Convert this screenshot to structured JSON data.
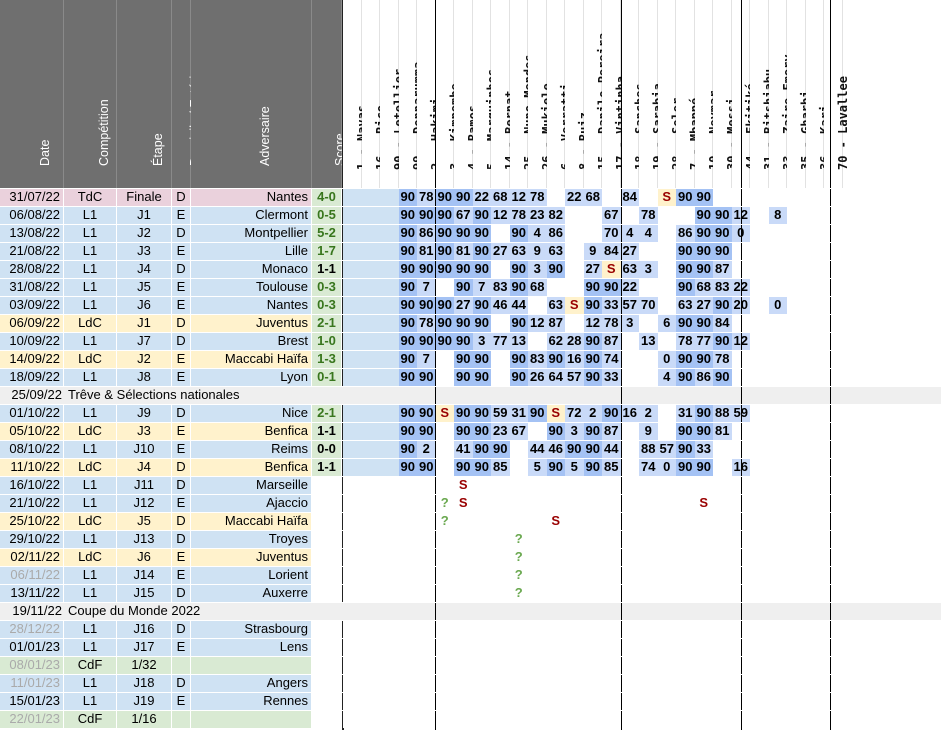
{
  "headers": {
    "left": [
      "Date",
      "Compétition",
      "Étape",
      "Domicile / Extérieur",
      "Adversaire",
      "Score"
    ],
    "players": [
      "1 - Navas",
      "16 - Rico",
      "90 - Letellier",
      "99 - Donnarumma",
      "2 - Hakimi",
      "3 - Kimpembe",
      "4 - Ramos",
      "5 - Marquinhos",
      "14 - Bernat",
      "25 - Nuno Mendes",
      "26 - Mukiele",
      "6 - Verratti",
      "8 - Ruiz",
      "15 - Danilo Pereira",
      "17 - Vintinha",
      "18 - Sanches",
      "19 - Sarabia",
      "28 - Soler",
      "7 - Mbappé",
      "10 - Neymar",
      "30 - Messi",
      "44 - Ekitiké",
      "31 - Bitshiabu",
      "33 - Zaire-Emery",
      "35 - Gharbi",
      "36 - Kari",
      "70 - Lavallee"
    ]
  },
  "rows": [
    {
      "type": "match",
      "date": "31/07/22",
      "comp": "TdC",
      "stage": "Finale",
      "venue": "D",
      "opponent": "Nantes",
      "score": "4-0",
      "result": "W",
      "bg": "#ead1dc",
      "stats": [
        "",
        "",
        "",
        "90",
        "78",
        "90",
        "90",
        "22",
        "68",
        "12",
        "78",
        "",
        "22",
        "68",
        "",
        "84",
        "",
        "S",
        "90",
        "90",
        "",
        "",
        "",
        "",
        "",
        "",
        ""
      ]
    },
    {
      "type": "match",
      "date": "06/08/22",
      "comp": "L1",
      "stage": "J1",
      "venue": "E",
      "opponent": "Clermont",
      "score": "0-5",
      "result": "W",
      "bg": "#cfe2f3",
      "stats": [
        "",
        "",
        "",
        "90",
        "90",
        "90",
        "67",
        "90",
        "12",
        "78",
        "23",
        "82",
        "",
        "",
        "67",
        "",
        "78",
        "",
        "",
        "90",
        "90",
        "12",
        "",
        "8",
        "",
        "",
        ""
      ]
    },
    {
      "type": "match",
      "date": "13/08/22",
      "comp": "L1",
      "stage": "J2",
      "venue": "D",
      "opponent": "Montpellier",
      "score": "5-2",
      "result": "W",
      "bg": "#cfe2f3",
      "stats": [
        "",
        "",
        "",
        "90",
        "86",
        "90",
        "90",
        "90",
        "",
        "90",
        "4",
        "86",
        "",
        "",
        "70",
        "4",
        "4",
        "",
        "86",
        "90",
        "90",
        "0",
        "",
        "",
        "",
        "",
        ""
      ]
    },
    {
      "type": "match",
      "date": "21/08/22",
      "comp": "L1",
      "stage": "J3",
      "venue": "E",
      "opponent": "Lille",
      "score": "1-7",
      "result": "W",
      "bg": "#cfe2f3",
      "stats": [
        "",
        "",
        "",
        "90",
        "81",
        "90",
        "81",
        "90",
        "27",
        "63",
        "9",
        "63",
        "",
        "9",
        "84",
        "27",
        "",
        "",
        "90",
        "90",
        "90",
        "",
        "",
        "",
        "",
        "",
        ""
      ]
    },
    {
      "type": "match",
      "date": "28/08/22",
      "comp": "L1",
      "stage": "J4",
      "venue": "D",
      "opponent": "Monaco",
      "score": "1-1",
      "result": "D",
      "bg": "#cfe2f3",
      "stats": [
        "",
        "",
        "",
        "90",
        "90",
        "90",
        "90",
        "90",
        "",
        "90",
        "3",
        "90",
        "",
        "27",
        "S",
        "63",
        "3",
        "",
        "90",
        "90",
        "87",
        "",
        "",
        "",
        "",
        "",
        ""
      ]
    },
    {
      "type": "match",
      "date": "31/08/22",
      "comp": "L1",
      "stage": "J5",
      "venue": "E",
      "opponent": "Toulouse",
      "score": "0-3",
      "result": "W",
      "bg": "#cfe2f3",
      "stats": [
        "",
        "",
        "",
        "90",
        "7",
        "",
        "90",
        "7",
        "83",
        "90",
        "68",
        "",
        "",
        "90",
        "90",
        "22",
        "",
        "",
        "90",
        "68",
        "83",
        "22",
        "",
        "",
        "",
        "",
        ""
      ]
    },
    {
      "type": "match",
      "date": "03/09/22",
      "comp": "L1",
      "stage": "J6",
      "venue": "E",
      "opponent": "Nantes",
      "score": "0-3",
      "result": "W",
      "bg": "#cfe2f3",
      "stats": [
        "",
        "",
        "",
        "90",
        "90",
        "90",
        "27",
        "90",
        "46",
        "44",
        "",
        "63",
        "S",
        "90",
        "33",
        "57",
        "70",
        "",
        "63",
        "27",
        "90",
        "20",
        "",
        "0",
        "",
        "",
        ""
      ]
    },
    {
      "type": "match",
      "date": "06/09/22",
      "comp": "LdC",
      "stage": "J1",
      "venue": "D",
      "opponent": "Juventus",
      "score": "2-1",
      "result": "W",
      "bg": "#fff2cc",
      "stats": [
        "",
        "",
        "",
        "90",
        "78",
        "90",
        "90",
        "90",
        "",
        "90",
        "12",
        "87",
        "",
        "12",
        "78",
        "3",
        "",
        "6",
        "90",
        "90",
        "84",
        "",
        "",
        "",
        "",
        "",
        ""
      ]
    },
    {
      "type": "match",
      "date": "10/09/22",
      "comp": "L1",
      "stage": "J7",
      "venue": "D",
      "opponent": "Brest",
      "score": "1-0",
      "result": "W",
      "bg": "#cfe2f3",
      "stats": [
        "",
        "",
        "",
        "90",
        "90",
        "90",
        "90",
        "3",
        "77",
        "13",
        "",
        "62",
        "28",
        "90",
        "87",
        "",
        "13",
        "",
        "78",
        "77",
        "90",
        "12",
        "",
        "",
        "",
        "",
        ""
      ]
    },
    {
      "type": "match",
      "date": "14/09/22",
      "comp": "LdC",
      "stage": "J2",
      "venue": "E",
      "opponent": "Maccabi Haïfa",
      "score": "1-3",
      "result": "W",
      "bg": "#fff2cc",
      "stats": [
        "",
        "",
        "",
        "90",
        "7",
        "",
        "90",
        "90",
        "",
        "90",
        "83",
        "90",
        "16",
        "90",
        "74",
        "",
        "",
        "0",
        "90",
        "90",
        "78",
        "",
        "",
        "",
        "",
        "",
        ""
      ]
    },
    {
      "type": "match",
      "date": "18/09/22",
      "comp": "L1",
      "stage": "J8",
      "venue": "E",
      "opponent": "Lyon",
      "score": "0-1",
      "result": "W",
      "bg": "#cfe2f3",
      "stats": [
        "",
        "",
        "",
        "90",
        "90",
        "",
        "90",
        "90",
        "",
        "90",
        "26",
        "64",
        "57",
        "90",
        "33",
        "",
        "",
        "4",
        "90",
        "86",
        "90",
        "",
        "",
        "",
        "",
        "",
        ""
      ]
    },
    {
      "type": "break",
      "date": "25/09/22",
      "label": "Trêve & Sélections nationales"
    },
    {
      "type": "match",
      "date": "01/10/22",
      "comp": "L1",
      "stage": "J9",
      "venue": "D",
      "opponent": "Nice",
      "score": "2-1",
      "result": "W",
      "bg": "#cfe2f3",
      "stats": [
        "",
        "",
        "",
        "90",
        "90",
        "S",
        "90",
        "90",
        "59",
        "31",
        "90",
        "S",
        "72",
        "2",
        "90",
        "16",
        "2",
        "",
        "31",
        "90",
        "88",
        "59",
        "",
        "",
        "",
        "",
        ""
      ]
    },
    {
      "type": "match",
      "date": "05/10/22",
      "comp": "LdC",
      "stage": "J3",
      "venue": "E",
      "opponent": "Benfica",
      "score": "1-1",
      "result": "D",
      "bg": "#fff2cc",
      "stats": [
        "",
        "",
        "",
        "90",
        "90",
        "",
        "90",
        "90",
        "23",
        "67",
        "",
        "90",
        "3",
        "90",
        "87",
        "",
        "9",
        "",
        "90",
        "90",
        "81",
        "",
        "",
        "",
        "",
        "",
        ""
      ]
    },
    {
      "type": "match",
      "date": "08/10/22",
      "comp": "L1",
      "stage": "J10",
      "venue": "E",
      "opponent": "Reims",
      "score": "0-0",
      "result": "D",
      "bg": "#cfe2f3",
      "stats": [
        "",
        "",
        "",
        "90",
        "2",
        "",
        "41",
        "90",
        "90",
        "",
        "44",
        "46",
        "90",
        "90",
        "44",
        "",
        "88",
        "57",
        "90",
        "33",
        "",
        "",
        "",
        "",
        "",
        "",
        ""
      ]
    },
    {
      "type": "match",
      "date": "11/10/22",
      "comp": "LdC",
      "stage": "J4",
      "venue": "D",
      "opponent": "Benfica",
      "score": "1-1",
      "result": "D",
      "bg": "#fff2cc",
      "stats": [
        "",
        "",
        "",
        "90",
        "90",
        "",
        "90",
        "90",
        "85",
        "",
        "5",
        "90",
        "5",
        "90",
        "85",
        "",
        "74",
        "0",
        "90",
        "90",
        "",
        "16",
        "",
        "",
        "",
        "",
        ""
      ]
    },
    {
      "type": "match",
      "date": "16/10/22",
      "comp": "L1",
      "stage": "J11",
      "venue": "D",
      "opponent": "Marseille",
      "score": "",
      "result": "",
      "bg": "#cfe2f3",
      "stats": [
        "",
        "",
        "",
        "",
        "",
        "",
        "S",
        "",
        "",
        "",
        "",
        "",
        "",
        "",
        "",
        "",
        "",
        "",
        "",
        "",
        "",
        "",
        "",
        "",
        "",
        "",
        ""
      ]
    },
    {
      "type": "match",
      "date": "21/10/22",
      "comp": "L1",
      "stage": "J12",
      "venue": "E",
      "opponent": "Ajaccio",
      "score": "",
      "result": "",
      "bg": "#cfe2f3",
      "stats": [
        "",
        "",
        "",
        "",
        "",
        "?",
        "S",
        "",
        "",
        "",
        "",
        "",
        "",
        "",
        "",
        "",
        "",
        "",
        "",
        "S",
        "",
        "",
        "",
        "",
        "",
        "",
        ""
      ]
    },
    {
      "type": "match",
      "date": "25/10/22",
      "comp": "LdC",
      "stage": "J5",
      "venue": "D",
      "opponent": "Maccabi Haïfa",
      "score": "",
      "result": "",
      "bg": "#fff2cc",
      "stats": [
        "",
        "",
        "",
        "",
        "",
        "?",
        "",
        "",
        "",
        "",
        "",
        "S",
        "",
        "",
        "",
        "",
        "",
        "",
        "",
        "",
        "",
        "",
        "",
        "",
        "",
        "",
        ""
      ]
    },
    {
      "type": "match",
      "date": "29/10/22",
      "comp": "L1",
      "stage": "J13",
      "venue": "D",
      "opponent": "Troyes",
      "score": "",
      "result": "",
      "bg": "#cfe2f3",
      "stats": [
        "",
        "",
        "",
        "",
        "",
        "",
        "",
        "",
        "",
        "?",
        "",
        "",
        "",
        "",
        "",
        "",
        "",
        "",
        "",
        "",
        "",
        "",
        "",
        "",
        "",
        "",
        ""
      ]
    },
    {
      "type": "match",
      "date": "02/11/22",
      "comp": "LdC",
      "stage": "J6",
      "venue": "E",
      "opponent": "Juventus",
      "score": "",
      "result": "",
      "bg": "#fff2cc",
      "stats": [
        "",
        "",
        "",
        "",
        "",
        "",
        "",
        "",
        "",
        "?",
        "",
        "",
        "",
        "",
        "",
        "",
        "",
        "",
        "",
        "",
        "",
        "",
        "",
        "",
        "",
        "",
        ""
      ]
    },
    {
      "type": "match",
      "date": "06/11/22",
      "comp": "L1",
      "stage": "J14",
      "venue": "E",
      "opponent": "Lorient",
      "score": "",
      "result": "",
      "bg": "#cfe2f3",
      "grey": true,
      "stats": [
        "",
        "",
        "",
        "",
        "",
        "",
        "",
        "",
        "",
        "?",
        "",
        "",
        "",
        "",
        "",
        "",
        "",
        "",
        "",
        "",
        "",
        "",
        "",
        "",
        "",
        "",
        ""
      ]
    },
    {
      "type": "match",
      "date": "13/11/22",
      "comp": "L1",
      "stage": "J15",
      "venue": "D",
      "opponent": "Auxerre",
      "score": "",
      "result": "",
      "bg": "#cfe2f3",
      "stats": [
        "",
        "",
        "",
        "",
        "",
        "",
        "",
        "",
        "",
        "?",
        "",
        "",
        "",
        "",
        "",
        "",
        "",
        "",
        "",
        "",
        "",
        "",
        "",
        "",
        "",
        "",
        ""
      ]
    },
    {
      "type": "break",
      "date": "19/11/22",
      "label": "Coupe du Monde 2022"
    },
    {
      "type": "match",
      "date": "28/12/22",
      "comp": "L1",
      "stage": "J16",
      "venue": "D",
      "opponent": "Strasbourg",
      "score": "",
      "result": "",
      "bg": "#cfe2f3",
      "grey": true,
      "stats": [
        "",
        "",
        "",
        "",
        "",
        "",
        "",
        "",
        "",
        "",
        "",
        "",
        "",
        "",
        "",
        "",
        "",
        "",
        "",
        "",
        "",
        "",
        "",
        "",
        "",
        "",
        ""
      ]
    },
    {
      "type": "match",
      "date": "01/01/23",
      "comp": "L1",
      "stage": "J17",
      "venue": "E",
      "opponent": "Lens",
      "score": "",
      "result": "",
      "bg": "#cfe2f3",
      "stats": [
        "",
        "",
        "",
        "",
        "",
        "",
        "",
        "",
        "",
        "",
        "",
        "",
        "",
        "",
        "",
        "",
        "",
        "",
        "",
        "",
        "",
        "",
        "",
        "",
        "",
        "",
        ""
      ]
    },
    {
      "type": "match",
      "date": "08/01/23",
      "comp": "CdF",
      "stage": "1/32",
      "venue": "",
      "opponent": "",
      "score": "",
      "result": "",
      "bg": "#d9ead3",
      "grey": true,
      "stats": [
        "",
        "",
        "",
        "",
        "",
        "",
        "",
        "",
        "",
        "",
        "",
        "",
        "",
        "",
        "",
        "",
        "",
        "",
        "",
        "",
        "",
        "",
        "",
        "",
        "",
        "",
        ""
      ]
    },
    {
      "type": "match",
      "date": "11/01/23",
      "comp": "L1",
      "stage": "J18",
      "venue": "D",
      "opponent": "Angers",
      "score": "",
      "result": "",
      "bg": "#cfe2f3",
      "grey": true,
      "stats": [
        "",
        "",
        "",
        "",
        "",
        "",
        "",
        "",
        "",
        "",
        "",
        "",
        "",
        "",
        "",
        "",
        "",
        "",
        "",
        "",
        "",
        "",
        "",
        "",
        "",
        "",
        ""
      ]
    },
    {
      "type": "match",
      "date": "15/01/23",
      "comp": "L1",
      "stage": "J19",
      "venue": "E",
      "opponent": "Rennes",
      "score": "",
      "result": "",
      "bg": "#cfe2f3",
      "stats": [
        "",
        "",
        "",
        "",
        "",
        "",
        "",
        "",
        "",
        "",
        "",
        "",
        "",
        "",
        "",
        "",
        "",
        "",
        "",
        "",
        "",
        "",
        "",
        "",
        "",
        "",
        ""
      ]
    },
    {
      "type": "match",
      "date": "22/01/23",
      "comp": "CdF",
      "stage": "1/16",
      "venue": "",
      "opponent": "",
      "score": "",
      "result": "",
      "bg": "#d9ead3",
      "grey": true,
      "stats": [
        "",
        "",
        "",
        "",
        "",
        "",
        "",
        "",
        "",
        "",
        "",
        "",
        "",
        "",
        "",
        "",
        "",
        "",
        "",
        "",
        "",
        "",
        "",
        "",
        "",
        "",
        ""
      ]
    }
  ],
  "colors": {
    "header_bg": "#6f6f6f",
    "win": "#38761d",
    "draw": "#000000",
    "played_full": "#6d9eeb",
    "played_part": "#a4c2f4",
    "starter": "#ffff00",
    "sub": "#990000",
    "injured": "#f4cccc",
    "suspended_pending": "#fff2cc",
    "pending": "#d9ead3",
    "unused": "#cfe2f3",
    "break": "#efefef"
  }
}
